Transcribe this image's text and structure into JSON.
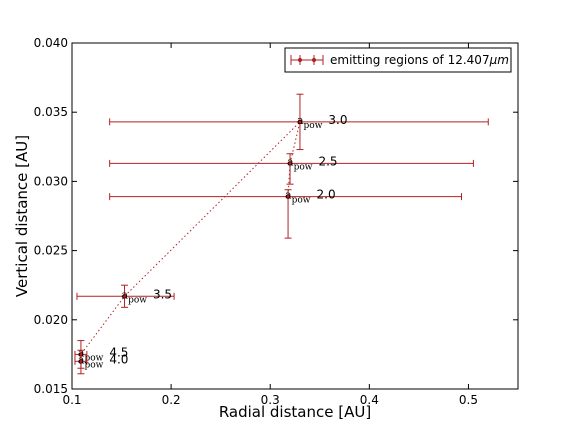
{
  "chart_data": {
    "type": "scatter",
    "title": "",
    "xlabel": "Radial distance [AU]",
    "ylabel": "Vertical distance [AU]",
    "xlim": [
      0.1,
      0.55
    ],
    "ylim": [
      0.015,
      0.04
    ],
    "xticks": [
      "0.1",
      "0.2",
      "0.3",
      "0.4",
      "0.5"
    ],
    "yticks": [
      "0.015",
      "0.020",
      "0.025",
      "0.030",
      "0.035",
      "0.040"
    ],
    "grid": false,
    "legend": {
      "placement": "top-right",
      "entry": "emitting regions of 12.407",
      "unit": "μm"
    },
    "series_color": "#b22222",
    "points": [
      {
        "label_a": "a",
        "label_sub": "pow",
        "label_value": "3.0",
        "x": 0.33,
        "y": 0.0343,
        "xerr": [
          0.138,
          0.52
        ],
        "yerr": [
          0.0323,
          0.0363
        ]
      },
      {
        "label_a": "a",
        "label_sub": "pow",
        "label_value": "2.5",
        "x": 0.32,
        "y": 0.0313,
        "xerr": [
          0.138,
          0.505
        ],
        "yerr": [
          0.0298,
          0.032
        ]
      },
      {
        "label_a": "a",
        "label_sub": "pow",
        "label_value": "2.0",
        "x": 0.318,
        "y": 0.0289,
        "xerr": [
          0.138,
          0.493
        ],
        "yerr": [
          0.0259,
          0.0294
        ]
      },
      {
        "label_a": "a",
        "label_sub": "pow",
        "label_value": "3.5",
        "x": 0.153,
        "y": 0.0217,
        "xerr": [
          0.105,
          0.203
        ],
        "yerr": [
          0.0209,
          0.0225
        ]
      },
      {
        "label_a": "a",
        "label_sub": "pow",
        "label_value": "4.5",
        "x": 0.109,
        "y": 0.0175,
        "xerr": [
          0.103,
          0.115
        ],
        "yerr": [
          0.0165,
          0.0185
        ]
      },
      {
        "label_a": "a",
        "label_sub": "pow",
        "label_value": "4.0",
        "x": 0.109,
        "y": 0.017,
        "xerr": [
          0.103,
          0.115
        ],
        "yerr": [
          0.0161,
          0.0178
        ]
      }
    ],
    "dotted_line_order": [
      5,
      4,
      3,
      0,
      1,
      2
    ]
  }
}
